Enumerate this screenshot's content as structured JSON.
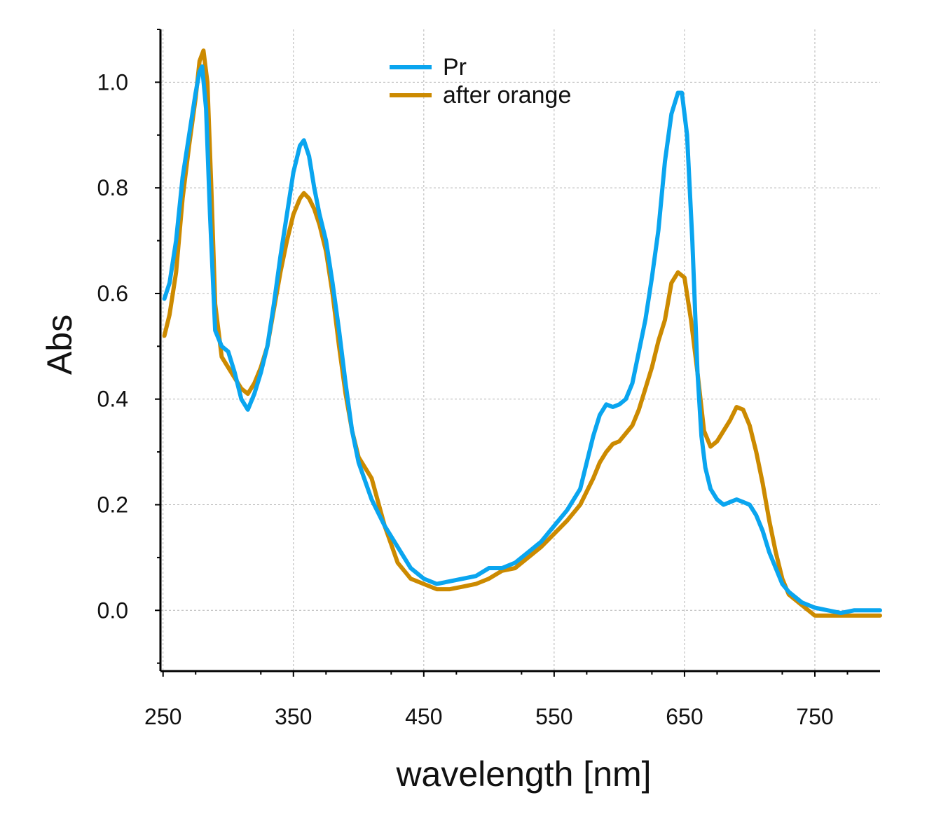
{
  "chart_data": {
    "type": "line",
    "title": "",
    "xlabel": "wavelength [nm]",
    "ylabel": "Abs",
    "xlim": [
      248,
      800
    ],
    "ylim": [
      -0.115,
      1.1
    ],
    "xticks": [
      250,
      350,
      450,
      550,
      650,
      750
    ],
    "xtick_labels": [
      "250",
      "350",
      "450",
      "550",
      "650",
      "750"
    ],
    "yticks": [
      0.0,
      0.2,
      0.4,
      0.6,
      0.8,
      1.0
    ],
    "ytick_labels": [
      "0.0",
      "0.2",
      "0.4",
      "0.6",
      "0.8",
      "1.0"
    ],
    "grid": true,
    "legend_position": "top-center",
    "series": [
      {
        "name": "Pr",
        "color": "#0aa5ef",
        "x": [
          251,
          255,
          260,
          265,
          270,
          275,
          278,
          280,
          283,
          286,
          290,
          295,
          300,
          305,
          310,
          315,
          320,
          325,
          330,
          335,
          340,
          345,
          350,
          355,
          358,
          362,
          366,
          370,
          375,
          380,
          385,
          390,
          395,
          400,
          410,
          420,
          430,
          440,
          450,
          460,
          470,
          480,
          490,
          500,
          510,
          520,
          530,
          540,
          550,
          560,
          570,
          580,
          585,
          590,
          595,
          600,
          605,
          610,
          615,
          620,
          625,
          630,
          635,
          640,
          645,
          648,
          652,
          656,
          660,
          663,
          666,
          670,
          675,
          680,
          685,
          690,
          695,
          700,
          705,
          710,
          715,
          720,
          725,
          730,
          740,
          750,
          760,
          770,
          780,
          790,
          800
        ],
        "y": [
          0.59,
          0.62,
          0.7,
          0.82,
          0.9,
          0.98,
          1.02,
          1.03,
          0.95,
          0.75,
          0.53,
          0.5,
          0.49,
          0.45,
          0.4,
          0.38,
          0.41,
          0.45,
          0.5,
          0.58,
          0.67,
          0.75,
          0.83,
          0.88,
          0.89,
          0.86,
          0.8,
          0.75,
          0.7,
          0.62,
          0.53,
          0.43,
          0.34,
          0.28,
          0.21,
          0.16,
          0.12,
          0.08,
          0.06,
          0.05,
          0.055,
          0.06,
          0.065,
          0.08,
          0.08,
          0.09,
          0.11,
          0.13,
          0.16,
          0.19,
          0.23,
          0.33,
          0.37,
          0.39,
          0.385,
          0.39,
          0.4,
          0.43,
          0.49,
          0.55,
          0.63,
          0.72,
          0.85,
          0.94,
          0.98,
          0.98,
          0.9,
          0.7,
          0.45,
          0.33,
          0.27,
          0.23,
          0.21,
          0.2,
          0.205,
          0.21,
          0.205,
          0.2,
          0.18,
          0.15,
          0.11,
          0.08,
          0.05,
          0.035,
          0.015,
          0.005,
          0.0,
          -0.005,
          0.0,
          0.0,
          0.0
        ]
      },
      {
        "name": "after orange",
        "color": "#cc8a00",
        "x": [
          251,
          255,
          260,
          265,
          270,
          275,
          278,
          281,
          284,
          287,
          290,
          295,
          300,
          305,
          310,
          315,
          320,
          325,
          330,
          335,
          340,
          345,
          350,
          355,
          358,
          362,
          366,
          370,
          375,
          380,
          385,
          390,
          395,
          400,
          410,
          420,
          430,
          440,
          450,
          460,
          470,
          480,
          490,
          500,
          510,
          520,
          530,
          540,
          550,
          560,
          570,
          580,
          585,
          590,
          595,
          600,
          605,
          610,
          615,
          620,
          625,
          630,
          635,
          640,
          645,
          650,
          655,
          660,
          665,
          670,
          675,
          680,
          685,
          690,
          695,
          700,
          705,
          710,
          715,
          720,
          725,
          730,
          740,
          750,
          760,
          770,
          780,
          790,
          800
        ],
        "y": [
          0.52,
          0.56,
          0.64,
          0.78,
          0.88,
          0.97,
          1.04,
          1.06,
          1.0,
          0.8,
          0.58,
          0.48,
          0.46,
          0.44,
          0.42,
          0.41,
          0.43,
          0.46,
          0.5,
          0.57,
          0.64,
          0.7,
          0.75,
          0.78,
          0.79,
          0.78,
          0.76,
          0.73,
          0.68,
          0.6,
          0.5,
          0.41,
          0.34,
          0.29,
          0.25,
          0.16,
          0.09,
          0.06,
          0.05,
          0.04,
          0.04,
          0.045,
          0.05,
          0.06,
          0.075,
          0.08,
          0.1,
          0.12,
          0.145,
          0.17,
          0.2,
          0.25,
          0.28,
          0.3,
          0.315,
          0.32,
          0.335,
          0.35,
          0.38,
          0.42,
          0.46,
          0.51,
          0.55,
          0.62,
          0.64,
          0.63,
          0.55,
          0.45,
          0.34,
          0.31,
          0.32,
          0.34,
          0.36,
          0.385,
          0.38,
          0.35,
          0.3,
          0.24,
          0.17,
          0.11,
          0.06,
          0.03,
          0.01,
          -0.01,
          -0.01,
          -0.01,
          -0.01,
          -0.01,
          -0.01
        ]
      }
    ]
  }
}
